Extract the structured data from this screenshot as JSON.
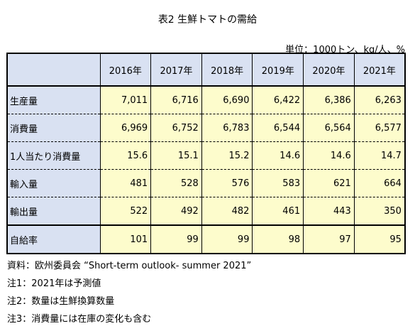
{
  "title": "表2  生鮮トマトの需給",
  "unit": "単位：1000トン、kg/人、%",
  "table": {
    "corner": "",
    "years": [
      "2016年",
      "2017年",
      "2018年",
      "2019年",
      "2020年",
      "2021年"
    ],
    "rows": [
      {
        "label": "生産量",
        "values": [
          "7,011",
          "6,716",
          "6,690",
          "6,422",
          "6,386",
          "6,263"
        ]
      },
      {
        "label": "消費量",
        "values": [
          "6,969",
          "6,752",
          "6,783",
          "6,544",
          "6,564",
          "6,577"
        ]
      },
      {
        "label": "1人当たり消費量",
        "values": [
          "15.6",
          "15.1",
          "15.2",
          "14.6",
          "14.6",
          "14.7"
        ]
      },
      {
        "label": "輸入量",
        "values": [
          "481",
          "528",
          "576",
          "583",
          "621",
          "664"
        ]
      },
      {
        "label": "輸出量",
        "values": [
          "522",
          "492",
          "482",
          "461",
          "443",
          "350"
        ]
      },
      {
        "label": "自給率",
        "values": [
          "101",
          "99",
          "99",
          "98",
          "97",
          "95"
        ]
      }
    ]
  },
  "notes": [
    "資料：欧州委員会 “Short-term outlook- summer 2021”",
    "注1：2021年は予測値",
    "注2：数量は生鮮換算数量",
    "注3：消費量には在庫の変化も含む"
  ]
}
